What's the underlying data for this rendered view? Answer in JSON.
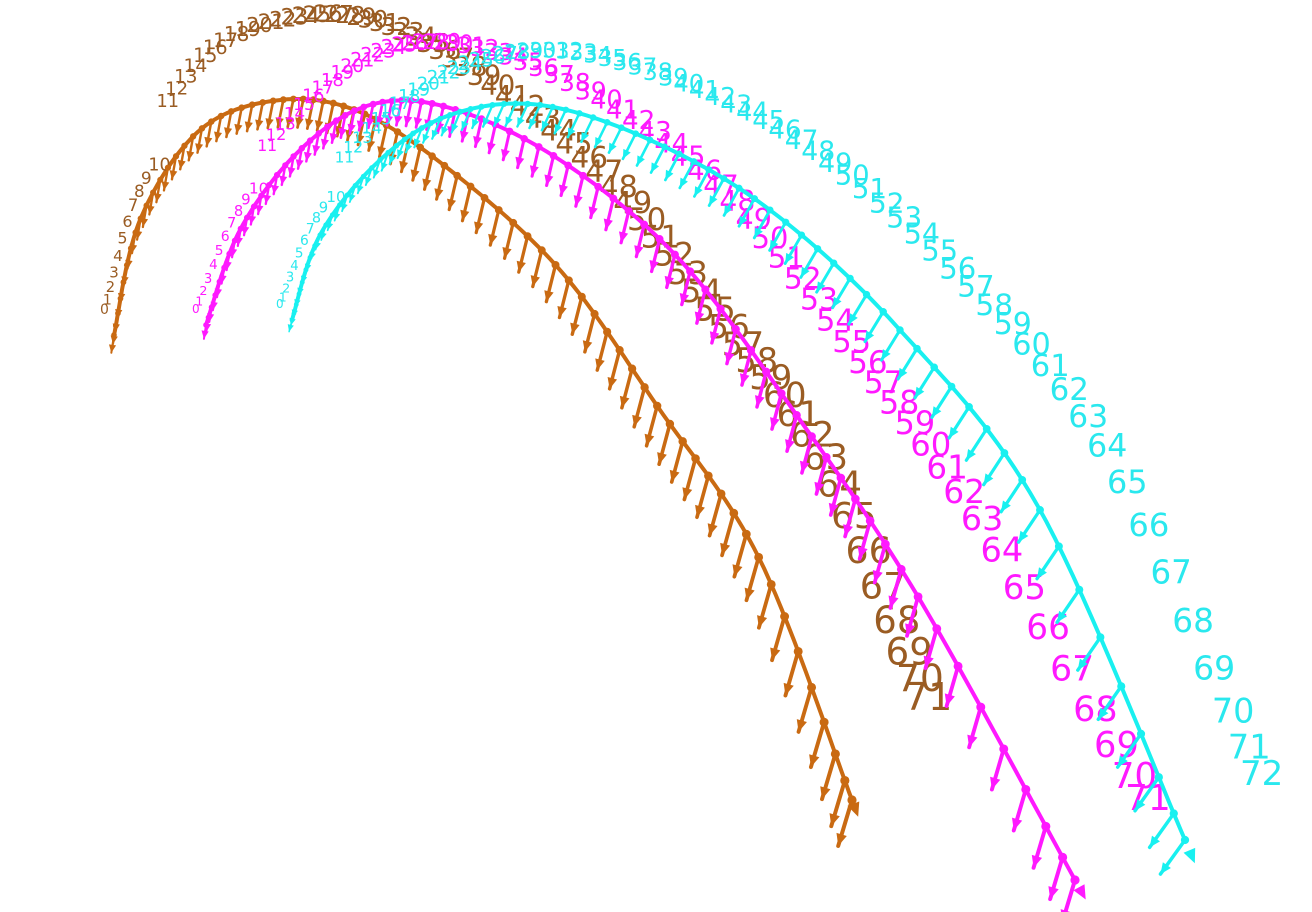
{
  "scene": {
    "background": "#ffffff",
    "curves": [
      {
        "id": "brown",
        "color": "#c96a12",
        "label_color": "#9a5c23",
        "marker_count": 72,
        "labels": [
          "0",
          "1",
          "2",
          "3",
          "4",
          "5",
          "6",
          "7",
          "8",
          "9",
          "10",
          "11",
          "12",
          "13",
          "14",
          "15",
          "16",
          "17",
          "18",
          "19",
          "20",
          "21",
          "22",
          "23",
          "24",
          "25",
          "26",
          "27",
          "28",
          "29",
          "30",
          "31",
          "32",
          "33",
          "34",
          "35",
          "36",
          "37",
          "38",
          "39",
          "40",
          "41",
          "42",
          "43",
          "44",
          "45",
          "46",
          "47",
          "48",
          "49",
          "50",
          "51",
          "52",
          "53",
          "54",
          "55",
          "56",
          "57",
          "58",
          "59",
          "60",
          "61",
          "62",
          "63",
          "64",
          "65",
          "66",
          "67",
          "68",
          "69",
          "70",
          "71"
        ]
      },
      {
        "id": "magenta",
        "color": "#ff19ff",
        "label_color": "#ff19ff",
        "marker_count": 72,
        "labels": [
          "0",
          "1",
          "2",
          "3",
          "4",
          "5",
          "6",
          "7",
          "8",
          "9",
          "10",
          "11",
          "12",
          "13",
          "14",
          "15",
          "16",
          "17",
          "18",
          "19",
          "20",
          "21",
          "22",
          "23",
          "24",
          "25",
          "26",
          "27",
          "28",
          "29",
          "30",
          "31",
          "32",
          "33",
          "34",
          "35",
          "36",
          "37",
          "38",
          "39",
          "40",
          "41",
          "42",
          "43",
          "44",
          "45",
          "46",
          "47",
          "48",
          "49",
          "50",
          "51",
          "52",
          "53",
          "54",
          "55",
          "56",
          "57",
          "58",
          "59",
          "60",
          "61",
          "62",
          "63",
          "64",
          "65",
          "66",
          "67",
          "68",
          "69",
          "70",
          "71"
        ]
      },
      {
        "id": "cyan",
        "color": "#19f0f0",
        "label_color": "#2ae8ee",
        "marker_count": 73,
        "labels": [
          "0",
          "1",
          "2",
          "3",
          "4",
          "5",
          "6",
          "7",
          "8",
          "9",
          "10",
          "11",
          "12",
          "13",
          "14",
          "15",
          "16",
          "17",
          "18",
          "19",
          "20",
          "21",
          "22",
          "23",
          "24",
          "25",
          "26",
          "27",
          "28",
          "29",
          "30",
          "31",
          "32",
          "33",
          "34",
          "35",
          "36",
          "37",
          "38",
          "39",
          "40",
          "41",
          "42",
          "43",
          "44",
          "45",
          "46",
          "47",
          "48",
          "49",
          "50",
          "51",
          "52",
          "53",
          "54",
          "55",
          "56",
          "57",
          "58",
          "59",
          "60",
          "61",
          "62",
          "63",
          "64",
          "65",
          "66",
          "67",
          "68",
          "69",
          "70",
          "71",
          "72"
        ]
      }
    ]
  }
}
